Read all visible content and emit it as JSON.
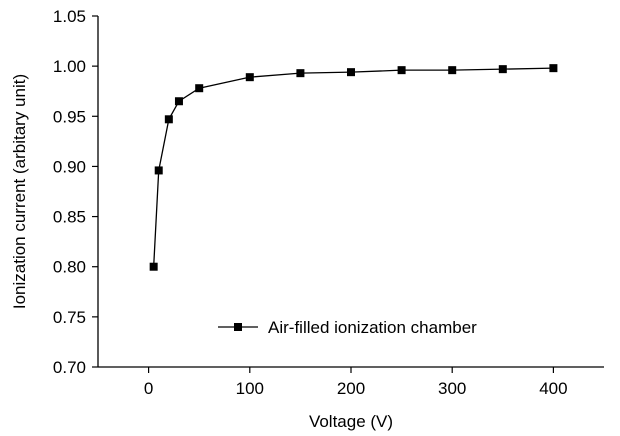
{
  "chart_data": {
    "type": "line",
    "title": "",
    "xlabel": "Voltage (V)",
    "ylabel": "Ionization current (arbitary unit)",
    "xlim": [
      -50,
      450
    ],
    "ylim": [
      0.7,
      1.05
    ],
    "xticks": [
      "0",
      "100",
      "200",
      "300",
      "400"
    ],
    "xtick_values": [
      0,
      100,
      200,
      300,
      400
    ],
    "yticks": [
      "0.70",
      "0.75",
      "0.80",
      "0.85",
      "0.90",
      "0.95",
      "1.00",
      "1.05"
    ],
    "ytick_values": [
      0.7,
      0.75,
      0.8,
      0.85,
      0.9,
      0.95,
      1.0,
      1.05
    ],
    "grid": false,
    "legend_position": "bottom-right",
    "colors": {
      "series": "#000000"
    },
    "series": [
      {
        "name": "Air-filled ionization chamber",
        "marker": "square",
        "x": [
          5,
          10,
          20,
          30,
          50,
          100,
          150,
          200,
          250,
          300,
          350,
          400
        ],
        "y": [
          0.8,
          0.896,
          0.947,
          0.965,
          0.978,
          0.989,
          0.993,
          0.994,
          0.996,
          0.996,
          0.997,
          0.998
        ]
      }
    ]
  }
}
